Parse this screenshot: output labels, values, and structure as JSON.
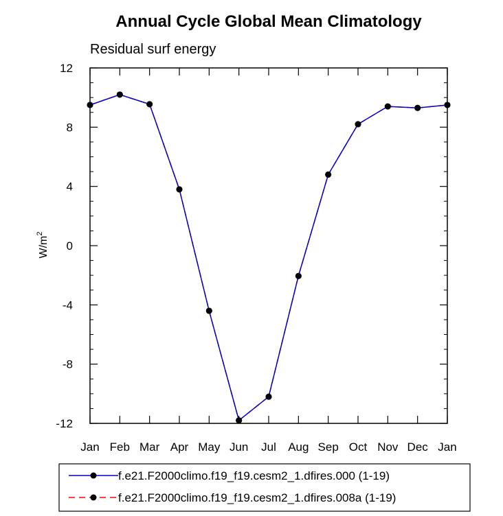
{
  "chart_data": {
    "type": "line",
    "title": "Annual Cycle Global Mean Climatology",
    "subtitle": "Residual surf energy",
    "ylabel": "W/m",
    "ylabel_superscript": "2",
    "xlabel": "",
    "categories": [
      "Jan",
      "Feb",
      "Mar",
      "Apr",
      "May",
      "Jun",
      "Jul",
      "Aug",
      "Sep",
      "Oct",
      "Nov",
      "Dec",
      "Jan"
    ],
    "ylim": [
      -12,
      12
    ],
    "yticks": [
      -12,
      -8,
      -4,
      0,
      4,
      8,
      12
    ],
    "yticks_labels": [
      "-12",
      "-8",
      "-4",
      "0",
      "4",
      "8",
      "12"
    ],
    "series": [
      {
        "name": "f.e21.F2000climo.f19_f19.cesm2_1.dfires.000 (1-19)",
        "color": "#0000cc",
        "dash": "solid",
        "marker": "circle",
        "values": [
          9.5,
          10.2,
          9.55,
          3.8,
          -4.4,
          -11.8,
          -10.2,
          -2.05,
          4.8,
          8.2,
          9.4,
          9.3,
          9.5
        ]
      },
      {
        "name": "f.e21.F2000climo.f19_f19.cesm2_1.dfires.008a (1-19)",
        "color": "#ff0000",
        "dash": "dashed",
        "marker": "circle",
        "values": [
          9.5,
          10.2,
          9.55,
          3.8,
          -4.4,
          -11.8,
          -10.2,
          -2.05,
          4.8,
          8.2,
          9.4,
          9.3,
          9.5
        ]
      }
    ],
    "grid": false,
    "legend_position": "bottom"
  }
}
